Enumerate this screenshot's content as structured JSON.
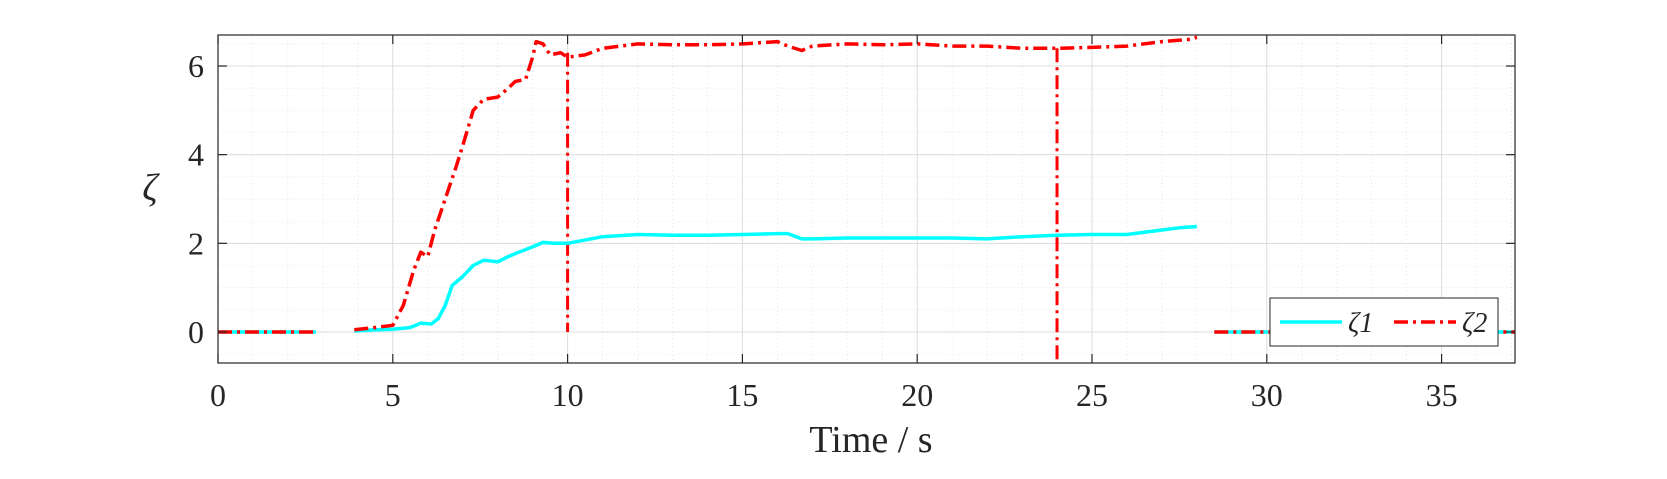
{
  "chart_data": {
    "type": "line",
    "title": "",
    "xlabel": "Time / s",
    "ylabel": "ζ",
    "xlim": [
      0,
      37.1
    ],
    "ylim": [
      -0.7,
      6.7
    ],
    "xticks": [
      0,
      5,
      10,
      15,
      20,
      25,
      30,
      35
    ],
    "yticks": [
      0,
      2,
      4,
      6
    ],
    "grid": true,
    "minor_grid": true,
    "legend": {
      "placement": "bottom-right",
      "orientation": "horizontal"
    },
    "series": [
      {
        "name": "ζ1",
        "color": "#00ffff",
        "line_style": "solid",
        "segments": [
          {
            "x": [
              0,
              2.8
            ],
            "y": [
              0,
              0
            ]
          },
          {
            "x": [
              3.9,
              4.5,
              5.0,
              5.5,
              5.8,
              6.1,
              6.3,
              6.5,
              6.7,
              7.0,
              7.3,
              7.6,
              8.0,
              8.3,
              8.6,
              9.0,
              9.3,
              9.6,
              10.0,
              11.0,
              12.0,
              13.0,
              14.0,
              15.0,
              16.0,
              16.3,
              16.7,
              17.0,
              18.0,
              19.0,
              20.0,
              21.0,
              22.0,
              23.0,
              24.0,
              25.0,
              26.0,
              27.0,
              27.5,
              28.0
            ],
            "y": [
              0.02,
              0.05,
              0.06,
              0.1,
              0.2,
              0.18,
              0.3,
              0.6,
              1.05,
              1.25,
              1.5,
              1.62,
              1.58,
              1.7,
              1.8,
              1.92,
              2.02,
              2.0,
              2.0,
              2.15,
              2.2,
              2.18,
              2.18,
              2.2,
              2.22,
              2.22,
              2.1,
              2.1,
              2.12,
              2.12,
              2.12,
              2.12,
              2.1,
              2.15,
              2.18,
              2.2,
              2.2,
              2.3,
              2.35,
              2.38
            ]
          },
          {
            "x": [
              28.5,
              37.1
            ],
            "y": [
              0,
              0
            ]
          }
        ]
      },
      {
        "name": "ζ2",
        "color": "#ff0000",
        "line_style": "dash-dot",
        "segments": [
          {
            "x": [
              0,
              2.8
            ],
            "y": [
              0,
              0
            ]
          },
          {
            "x": [
              3.9,
              4.5,
              5.0,
              5.3,
              5.6,
              5.8,
              6.0,
              6.2,
              6.5,
              6.8,
              7.0,
              7.3,
              7.6,
              8.0,
              8.3,
              8.5,
              8.8,
              9.0,
              9.1,
              9.3,
              9.5,
              9.8,
              10.0,
              10.5,
              11.0,
              12.0,
              13.0,
              14.0,
              15.0,
              16.0,
              16.3,
              16.7,
              17.0,
              18.0,
              19.0,
              20.0,
              21.0,
              22.0,
              23.0,
              24.0,
              25.0,
              26.0,
              27.0,
              27.8,
              28.0
            ],
            "y": [
              0.05,
              0.1,
              0.15,
              0.6,
              1.4,
              1.8,
              1.7,
              2.3,
              3.0,
              3.7,
              4.2,
              5.0,
              5.25,
              5.3,
              5.5,
              5.65,
              5.7,
              6.2,
              6.55,
              6.5,
              6.25,
              6.3,
              6.2,
              6.25,
              6.4,
              6.5,
              6.48,
              6.48,
              6.5,
              6.55,
              6.45,
              6.35,
              6.45,
              6.5,
              6.48,
              6.5,
              6.45,
              6.45,
              6.4,
              6.4,
              6.42,
              6.45,
              6.55,
              6.6,
              6.65
            ]
          },
          {
            "x": [
              28.5,
              37.1
            ],
            "y": [
              0,
              0
            ]
          }
        ]
      }
    ],
    "vertical_markers": [
      {
        "x": 10,
        "y_top": 6.3,
        "y_bottom": 0,
        "color": "#ff0000",
        "line_style": "dash-dot"
      },
      {
        "x": 24,
        "y_top": 6.4,
        "y_bottom": -0.7,
        "color": "#ff0000",
        "line_style": "dash-dot"
      }
    ]
  }
}
